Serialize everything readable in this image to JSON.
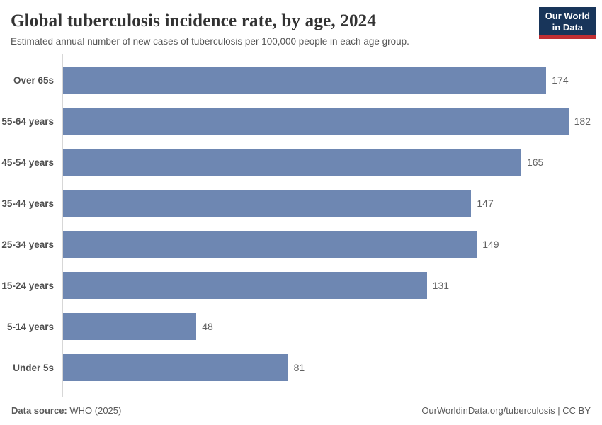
{
  "header": {
    "title": "Global tuberculosis incidence rate, by age, 2024",
    "subtitle": "Estimated annual number of new cases of tuberculosis per 100,000 people in each age group.",
    "logo": {
      "line1": "Our World",
      "line2": "in Data"
    }
  },
  "chart_data": {
    "type": "bar",
    "orientation": "horizontal",
    "title": "Global tuberculosis incidence rate, by age, 2024",
    "categories": [
      "Over 65s",
      "55-64 years",
      "45-54 years",
      "35-44 years",
      "25-34 years",
      "15-24 years",
      "5-14 years",
      "Under 5s"
    ],
    "values": [
      174,
      182,
      165,
      147,
      149,
      131,
      48,
      81
    ],
    "xlabel": "",
    "ylabel": "",
    "xlim": [
      0,
      190
    ],
    "grid": false,
    "value_labels": true,
    "bar_color": "#6e87b2"
  },
  "footer": {
    "datasource_label": "Data source:",
    "datasource_value": "WHO (2025)",
    "link": "OurWorldinData.org/tuberculosis",
    "separator": " | ",
    "license": "CC BY"
  },
  "colors": {
    "bar": "#6e87b2",
    "logo_bg": "#18355a",
    "logo_red": "#c12f33",
    "axis": "#d7d7d7",
    "title_text": "#333333",
    "subtitle_text": "#555555",
    "value_text": "#616161"
  }
}
